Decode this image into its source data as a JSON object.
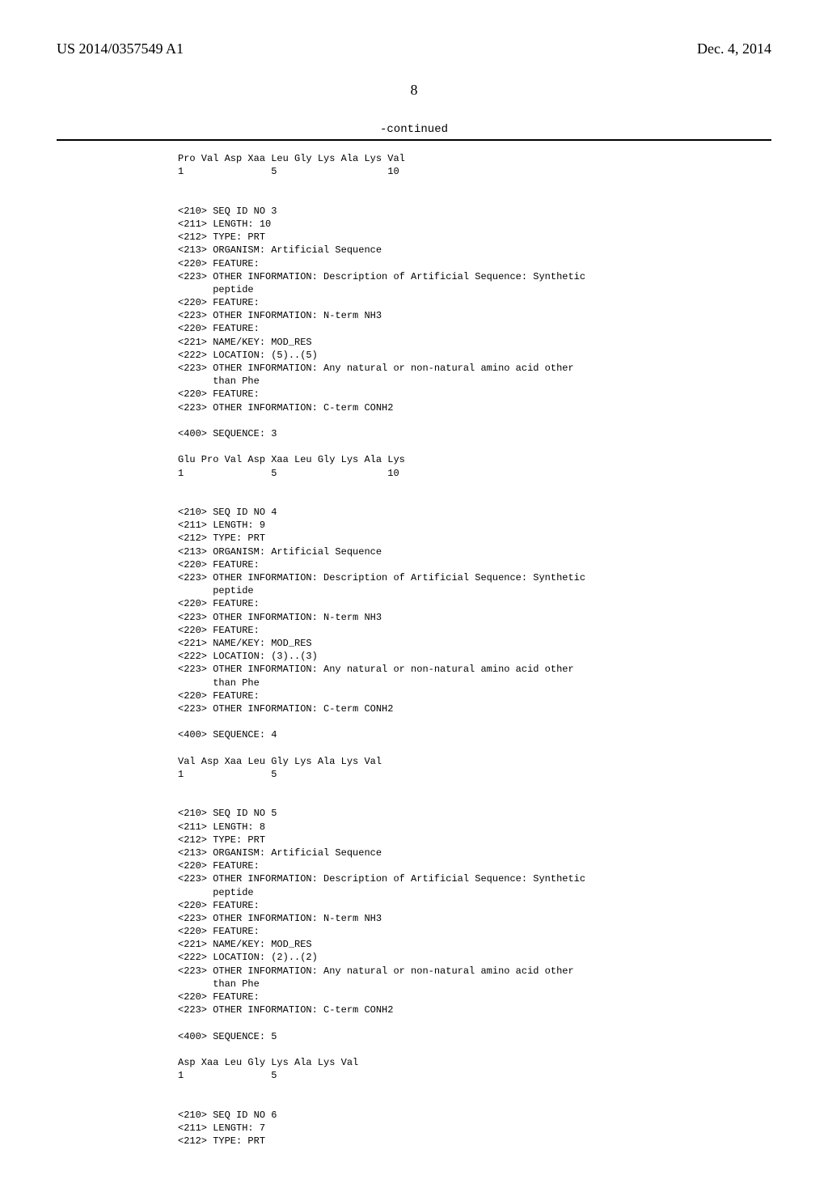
{
  "header": {
    "pub_number": "US 2014/0357549 A1",
    "pub_date": "Dec. 4, 2014"
  },
  "page_number": "8",
  "continued_label": "-continued",
  "sequences": {
    "block1": "Pro Val Asp Xaa Leu Gly Lys Ala Lys Val\n1               5                   10\n\n\n<210> SEQ ID NO 3\n<211> LENGTH: 10\n<212> TYPE: PRT\n<213> ORGANISM: Artificial Sequence\n<220> FEATURE:\n<223> OTHER INFORMATION: Description of Artificial Sequence: Synthetic\n      peptide\n<220> FEATURE:\n<223> OTHER INFORMATION: N-term NH3\n<220> FEATURE:\n<221> NAME/KEY: MOD_RES\n<222> LOCATION: (5)..(5)\n<223> OTHER INFORMATION: Any natural or non-natural amino acid other\n      than Phe\n<220> FEATURE:\n<223> OTHER INFORMATION: C-term CONH2\n\n<400> SEQUENCE: 3\n\nGlu Pro Val Asp Xaa Leu Gly Lys Ala Lys\n1               5                   10\n\n\n<210> SEQ ID NO 4\n<211> LENGTH: 9\n<212> TYPE: PRT\n<213> ORGANISM: Artificial Sequence\n<220> FEATURE:\n<223> OTHER INFORMATION: Description of Artificial Sequence: Synthetic\n      peptide\n<220> FEATURE:\n<223> OTHER INFORMATION: N-term NH3\n<220> FEATURE:\n<221> NAME/KEY: MOD_RES\n<222> LOCATION: (3)..(3)\n<223> OTHER INFORMATION: Any natural or non-natural amino acid other\n      than Phe\n<220> FEATURE:\n<223> OTHER INFORMATION: C-term CONH2\n\n<400> SEQUENCE: 4\n\nVal Asp Xaa Leu Gly Lys Ala Lys Val\n1               5\n\n\n<210> SEQ ID NO 5\n<211> LENGTH: 8\n<212> TYPE: PRT\n<213> ORGANISM: Artificial Sequence\n<220> FEATURE:\n<223> OTHER INFORMATION: Description of Artificial Sequence: Synthetic\n      peptide\n<220> FEATURE:\n<223> OTHER INFORMATION: N-term NH3\n<220> FEATURE:\n<221> NAME/KEY: MOD_RES\n<222> LOCATION: (2)..(2)\n<223> OTHER INFORMATION: Any natural or non-natural amino acid other\n      than Phe\n<220> FEATURE:\n<223> OTHER INFORMATION: C-term CONH2\n\n<400> SEQUENCE: 5\n\nAsp Xaa Leu Gly Lys Ala Lys Val\n1               5\n\n\n<210> SEQ ID NO 6\n<211> LENGTH: 7\n<212> TYPE: PRT"
  }
}
